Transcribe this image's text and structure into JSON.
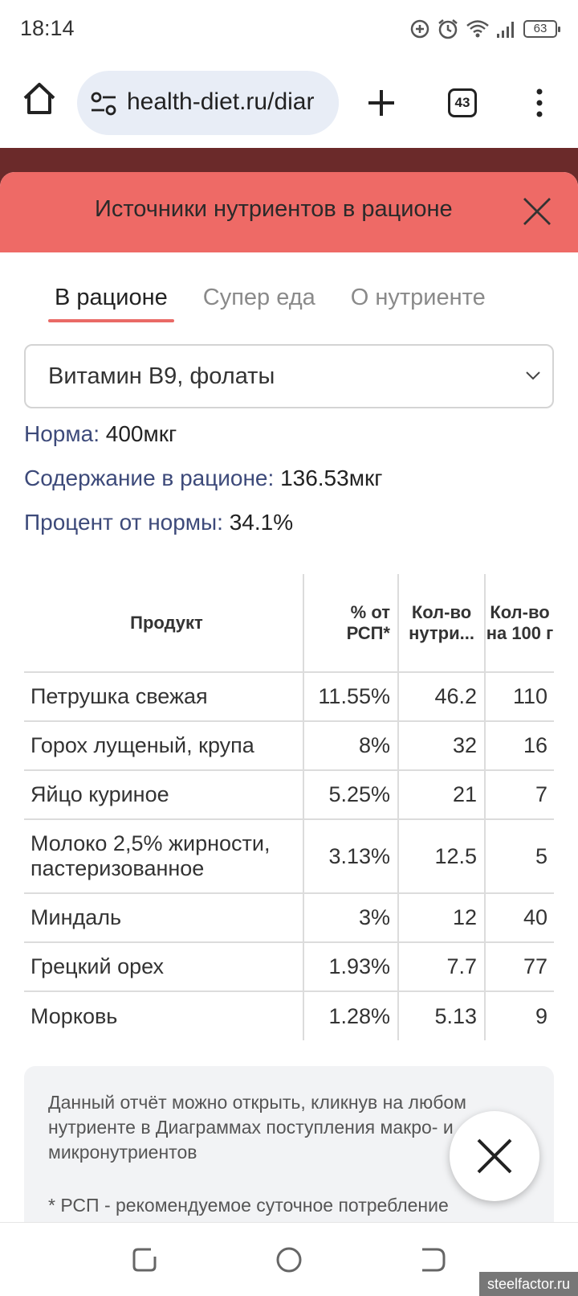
{
  "status_bar": {
    "time": "18:14",
    "battery": "63",
    "icons": [
      "data-saver-icon",
      "alarm-icon",
      "wifi-icon",
      "signal-icon",
      "battery-icon"
    ]
  },
  "browser": {
    "url": "health-diet.ru/diar",
    "tab_count": "43"
  },
  "modal": {
    "title": "Источники нутриентов в рационе",
    "tabs": [
      {
        "label": "В рационе"
      },
      {
        "label": "Супер еда"
      },
      {
        "label": "О нутриенте"
      }
    ],
    "nutrient_select": "Витамин B9, фолаты",
    "info": {
      "norm_label": "Норма:",
      "norm_value": "400мкг",
      "content_label": "Содержание в рационе:",
      "content_value": "136.53мкг",
      "percent_label": "Процент от нормы:",
      "percent_value": "34.1%"
    },
    "table": {
      "headers": [
        "Продукт",
        "% от РСП*",
        "Кол-во нутри...",
        "Кол-во на 100 г"
      ],
      "rows": [
        [
          "Петрушка свежая",
          "11.55%",
          "46.2",
          "110"
        ],
        [
          "Горох лущеный, крупа",
          "8%",
          "32",
          "16"
        ],
        [
          "Яйцо куриное",
          "5.25%",
          "21",
          "7"
        ],
        [
          "Молоко 2,5% жирности, пастеризованное",
          "3.13%",
          "12.5",
          "5"
        ],
        [
          "Миндаль",
          "3%",
          "12",
          "40"
        ],
        [
          "Грецкий орех",
          "1.93%",
          "7.7",
          "77"
        ],
        [
          "Морковь",
          "1.28%",
          "5.13",
          "9"
        ]
      ]
    },
    "note": "Данный отчёт можно открыть, кликнув на любом нутриенте в Диаграммах поступления макро- и микронутриентов",
    "footnote": "* РСП - рекомендуемое суточное потребление"
  },
  "watermark": "steelfactor.ru",
  "colors": {
    "header": "#ee6a66",
    "accent": "#e96a66",
    "label": "#3d4a7a",
    "strip": "#6b2a2a"
  }
}
